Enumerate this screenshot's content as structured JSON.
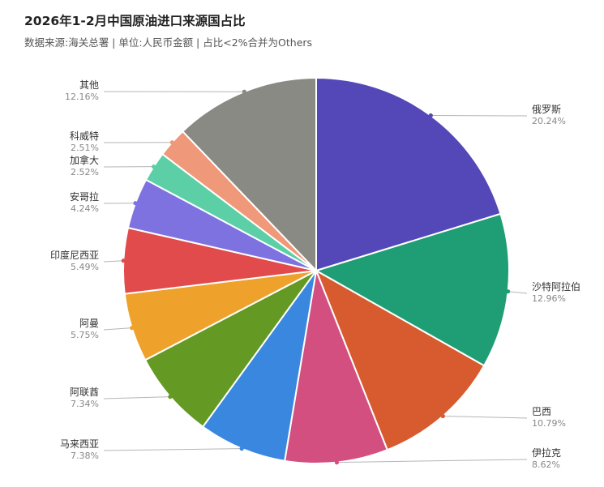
{
  "title": "2026年1-2月中国原油进口来源国占比",
  "subtitle": "数据来源:海关总署 | 单位:人民币金额 | 占比<2%合并为Others",
  "chart_data": {
    "type": "pie",
    "slices": [
      {
        "name": "俄罗斯",
        "value": 20.24,
        "label": "20.24%",
        "color": "#5448b8"
      },
      {
        "name": "沙特阿拉伯",
        "value": 12.96,
        "label": "12.96%",
        "color": "#1f9e75"
      },
      {
        "name": "巴西",
        "value": 10.79,
        "label": "10.79%",
        "color": "#d85a2f"
      },
      {
        "name": "伊拉克",
        "value": 8.62,
        "label": "8.62%",
        "color": "#d34f80"
      },
      {
        "name": "马来西亚",
        "value": 7.38,
        "label": "7.38%",
        "color": "#3a87e0"
      },
      {
        "name": "阿联酋",
        "value": 7.34,
        "label": "7.34%",
        "color": "#649a24"
      },
      {
        "name": "阿曼",
        "value": 5.75,
        "label": "5.75%",
        "color": "#eea22c"
      },
      {
        "name": "印度尼西亚",
        "value": 5.49,
        "label": "5.49%",
        "color": "#e14b4b"
      },
      {
        "name": "安哥拉",
        "value": 4.24,
        "label": "4.24%",
        "color": "#7d72e0"
      },
      {
        "name": "加拿大",
        "value": 2.52,
        "label": "2.52%",
        "color": "#5ccfa6"
      },
      {
        "name": "科威特",
        "value": 2.51,
        "label": "2.51%",
        "color": "#f0987a"
      },
      {
        "name": "其他",
        "value": 12.16,
        "label": "12.16%",
        "color": "#8a8a84"
      }
    ]
  }
}
